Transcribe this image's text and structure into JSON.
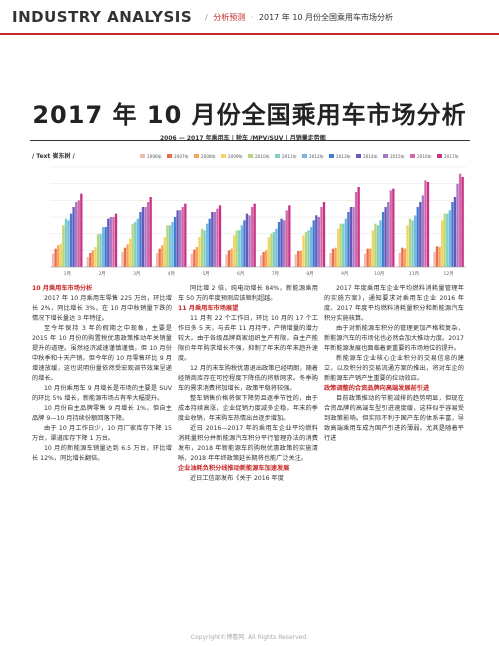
{
  "header": {
    "brand": "INDUSTRY ANALYSIS",
    "section": "分析预测",
    "article": "2017 年 10 月份全国乘用车市场分析"
  },
  "title": "2017 年 10 月份全国乘用车市场分析",
  "subtitle": "2006 — 2017 年乘用车 | 轿车 /MPV/SUV | 月销量走势图",
  "byline": "/ Text 崔东树 /",
  "colors": {
    "accent": "#c62828",
    "years": [
      "#f1b9b0",
      "#ec6d4d",
      "#f5a65b",
      "#f6d365",
      "#b8d77a",
      "#7ed0c4",
      "#79b6e1",
      "#3f7ed1",
      "#6a58b8",
      "#a679c8",
      "#d46aa5",
      "#c9328a"
    ]
  },
  "chart_data": {
    "type": "bar",
    "legend": [
      "2006年",
      "2007年",
      "2008年",
      "2009年",
      "2010年",
      "2011年",
      "2012年",
      "2013年",
      "2014年",
      "2015年",
      "2016年",
      "2017年"
    ],
    "categories": [
      "1月",
      "2月",
      "3月",
      "4月",
      "5月",
      "6月",
      "7月",
      "8月",
      "9月",
      "10月",
      "11月",
      "12月"
    ],
    "series": [
      {
        "name": "2006年",
        "values": [
          40,
          30,
          45,
          42,
          40,
          38,
          35,
          38,
          42,
          40,
          43,
          45
        ]
      },
      {
        "name": "2007年",
        "values": [
          55,
          42,
          58,
          55,
          52,
          50,
          45,
          48,
          55,
          55,
          58,
          62
        ]
      },
      {
        "name": "2008年",
        "values": [
          65,
          50,
          68,
          65,
          60,
          55,
          50,
          48,
          58,
          55,
          55,
          60
        ]
      },
      {
        "name": "2009年",
        "values": [
          70,
          60,
          85,
          90,
          90,
          95,
          90,
          95,
          115,
          110,
          125,
          140
        ]
      },
      {
        "name": "2010年",
        "values": [
          125,
          98,
          130,
          125,
          115,
          110,
          100,
          105,
          130,
          130,
          145,
          160
        ]
      },
      {
        "name": "2011年",
        "values": [
          145,
          100,
          135,
          125,
          110,
          110,
          105,
          110,
          130,
          125,
          140,
          160
        ]
      },
      {
        "name": "2012年",
        "values": [
          140,
          120,
          145,
          135,
          130,
          125,
          115,
          120,
          145,
          140,
          155,
          170
        ]
      },
      {
        "name": "2013年",
        "values": [
          160,
          120,
          165,
          150,
          145,
          140,
          135,
          140,
          165,
          165,
          180,
          195
        ]
      },
      {
        "name": "2014年",
        "values": [
          180,
          145,
          180,
          170,
          165,
          160,
          145,
          155,
          180,
          180,
          195,
          210
        ]
      },
      {
        "name": "2015年",
        "values": [
          195,
          150,
          180,
          170,
          165,
          155,
          140,
          150,
          180,
          195,
          215,
          250
        ]
      },
      {
        "name": "2016年",
        "values": [
          200,
          150,
          195,
          180,
          175,
          180,
          170,
          180,
          225,
          230,
          260,
          280
        ]
      },
      {
        "name": "2017年",
        "values": [
          220,
          160,
          210,
          190,
          185,
          190,
          185,
          195,
          240,
          235,
          255,
          270
        ]
      }
    ]
  },
  "columns": {
    "col1": [
      {
        "type": "h",
        "text": "10 月乘用车市场分析"
      },
      {
        "type": "p",
        "text": "2017 年 10 月乘用车零售 225 万台，环比增长 2%，同比增长 3%，在 10 月中秋销量下跌的情况下增长量达 3 年特征。"
      },
      {
        "type": "p",
        "text": "至今年保持 3 年的假期之中现象，主要是 2015 年 10 月份的购置税优惠政策推动年关销量提升的道理。虽然经济减速谨慎谨慎，但 10 月份中秋季和十天产销。但今年的 10 月零售环比 9 月增速放缓，这也说明份量依然受宏观调节效果呈递的增长。"
      },
      {
        "type": "p",
        "text": "10 月份乘用车 9 月增长是市场的主要是 SUV 的环比 5% 增长，新能源市场占有率大幅提升。"
      },
      {
        "type": "p",
        "text": "10 月份自主品牌零售 9 月增长 1%，但自主品牌 9—10 月持续份额回落下降。"
      },
      {
        "type": "p",
        "text": "由于 10 月工作日少，10 月厂家库存下降 15 万台，渠道库存下降 1 万台。"
      },
      {
        "type": "p",
        "text": "10 月的新能源车销量达到 6.5 万台，环比增长 12%，同比增长翻倍。"
      }
    ],
    "col2": [
      {
        "type": "p",
        "text": "同比增 2 倍，纯电动增长 84%，新能源乘用车 50 万的年度预测应该顺利超越。"
      },
      {
        "type": "h",
        "text": "11 月乘用车市场展望"
      },
      {
        "type": "p",
        "text": "11 月有 22 个工作日，环比 10 月的 17 个工作日多 5 天，与去年 11 月持平，产销增量的潜力较大。由于各级品牌商家组织生产有限，自主产能限价年年购求增长不强，抑制了年末的年末趋升速度。"
      },
      {
        "type": "p",
        "text": "12 月的末车购税优惠退出政策已经明朗，随着经销商库存在可控程度下降低的将新网求。冬季购车的需求消费将加增长，政策平稳将较强。"
      },
      {
        "type": "p",
        "text": "整车销售价格将保下降势且逐季节性的，由于成本持续高涨，企业促销力度减多企稳，年末的季度业收销，年末购车热情出台逐步增加。"
      },
      {
        "type": "p",
        "text": "近日 2016—2017 年的乘用车企业平均燃料消耗量积分并新能源汽车积分平行管理办法的消费发布，2018 年新能源车的购税优惠政策的实施清晰，2018 年年终政策延长期将也能广泛关注。"
      },
      {
        "type": "h",
        "text": "企业油耗负积分线推动新能源车加速发展"
      },
      {
        "type": "p",
        "text": "近日工信部发布《关于 2016 年度"
      }
    ],
    "col3": [
      {
        "type": "p",
        "text": "2017 年度乘用车企业平均燃料消耗量管理年的实施方案》，通知要求对乘用车企业 2016 年度、2017 年度平均燃料消耗量积分和新能源汽车积分实施核算。"
      },
      {
        "type": "p",
        "text": "由于对新能源车积分的管理更加严格和复杂，新能源汽车的市场化也必然会加大推动力度。2017 年新能源发展也面临着更重要的市场地位的提升。"
      },
      {
        "type": "p",
        "text": "新能源车企业核心企业积分的交易信息的建立，以及积分的交易流通方案的推出，将对车企的新能源车产销产生重要的拉动效应。"
      },
      {
        "type": "h",
        "text": "政策调整的合资品牌向高端发展前引进"
      },
      {
        "type": "p",
        "text": "目前政策推动的节能减排的趋势明显，但现在合资品牌的高端车型引进速度缓，这样似乎容易受到政策影响。但实际不利于国产车的体系丰富，导致高端乘用车成为国产引进的薄弱。尤其是随着平行进"
      }
    ]
  },
  "footer": "Copyright©博看网. All Rights Reserved."
}
